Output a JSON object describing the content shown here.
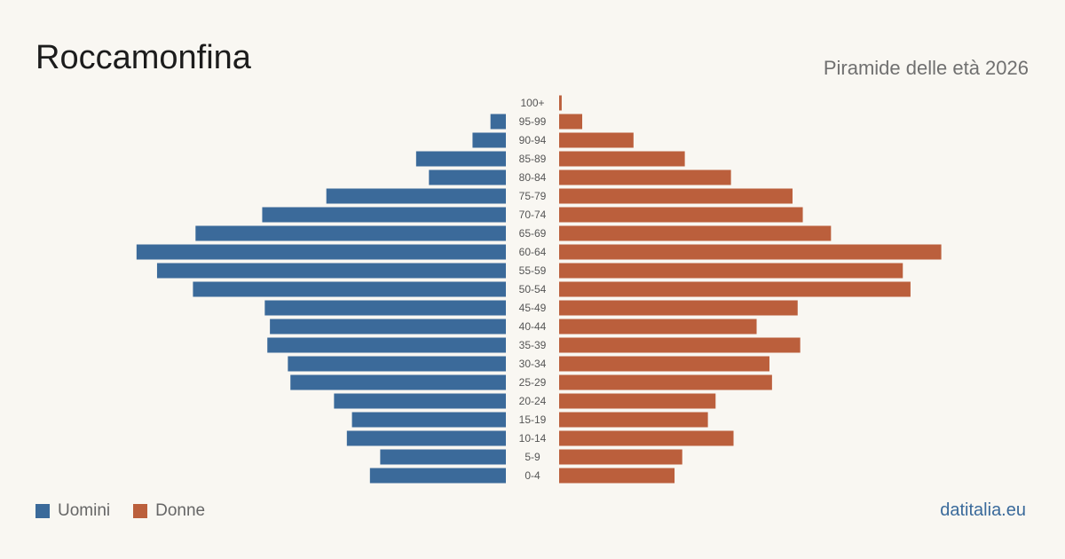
{
  "header": {
    "title": "Roccamonfina",
    "subtitle": "Piramide delle età 2026"
  },
  "legend": {
    "men_label": "Uomini",
    "women_label": "Donne"
  },
  "footer": {
    "source": "datitalia.eu"
  },
  "colors": {
    "men": "#3b6a9a",
    "women": "#bb5f3c"
  },
  "chart_data": {
    "type": "bar",
    "orientation": "horizontal-pyramid",
    "categories": [
      "100+",
      "95-99",
      "90-94",
      "85-89",
      "80-84",
      "75-79",
      "70-74",
      "65-69",
      "60-64",
      "55-59",
      "50-54",
      "45-49",
      "40-44",
      "35-39",
      "30-34",
      "25-29",
      "20-24",
      "15-19",
      "10-14",
      "5-9",
      "0-4"
    ],
    "series": [
      {
        "name": "Uomini",
        "values": [
          0,
          6,
          13,
          35,
          30,
          70,
          95,
          121,
          144,
          136,
          122,
          94,
          92,
          93,
          85,
          84,
          67,
          60,
          62,
          49,
          53
        ]
      },
      {
        "name": "Donne",
        "values": [
          1,
          9,
          29,
          49,
          67,
          91,
          95,
          106,
          149,
          134,
          137,
          93,
          77,
          94,
          82,
          83,
          61,
          58,
          68,
          48,
          45
        ]
      }
    ],
    "grid": false,
    "legend_position": "bottom-left"
  }
}
